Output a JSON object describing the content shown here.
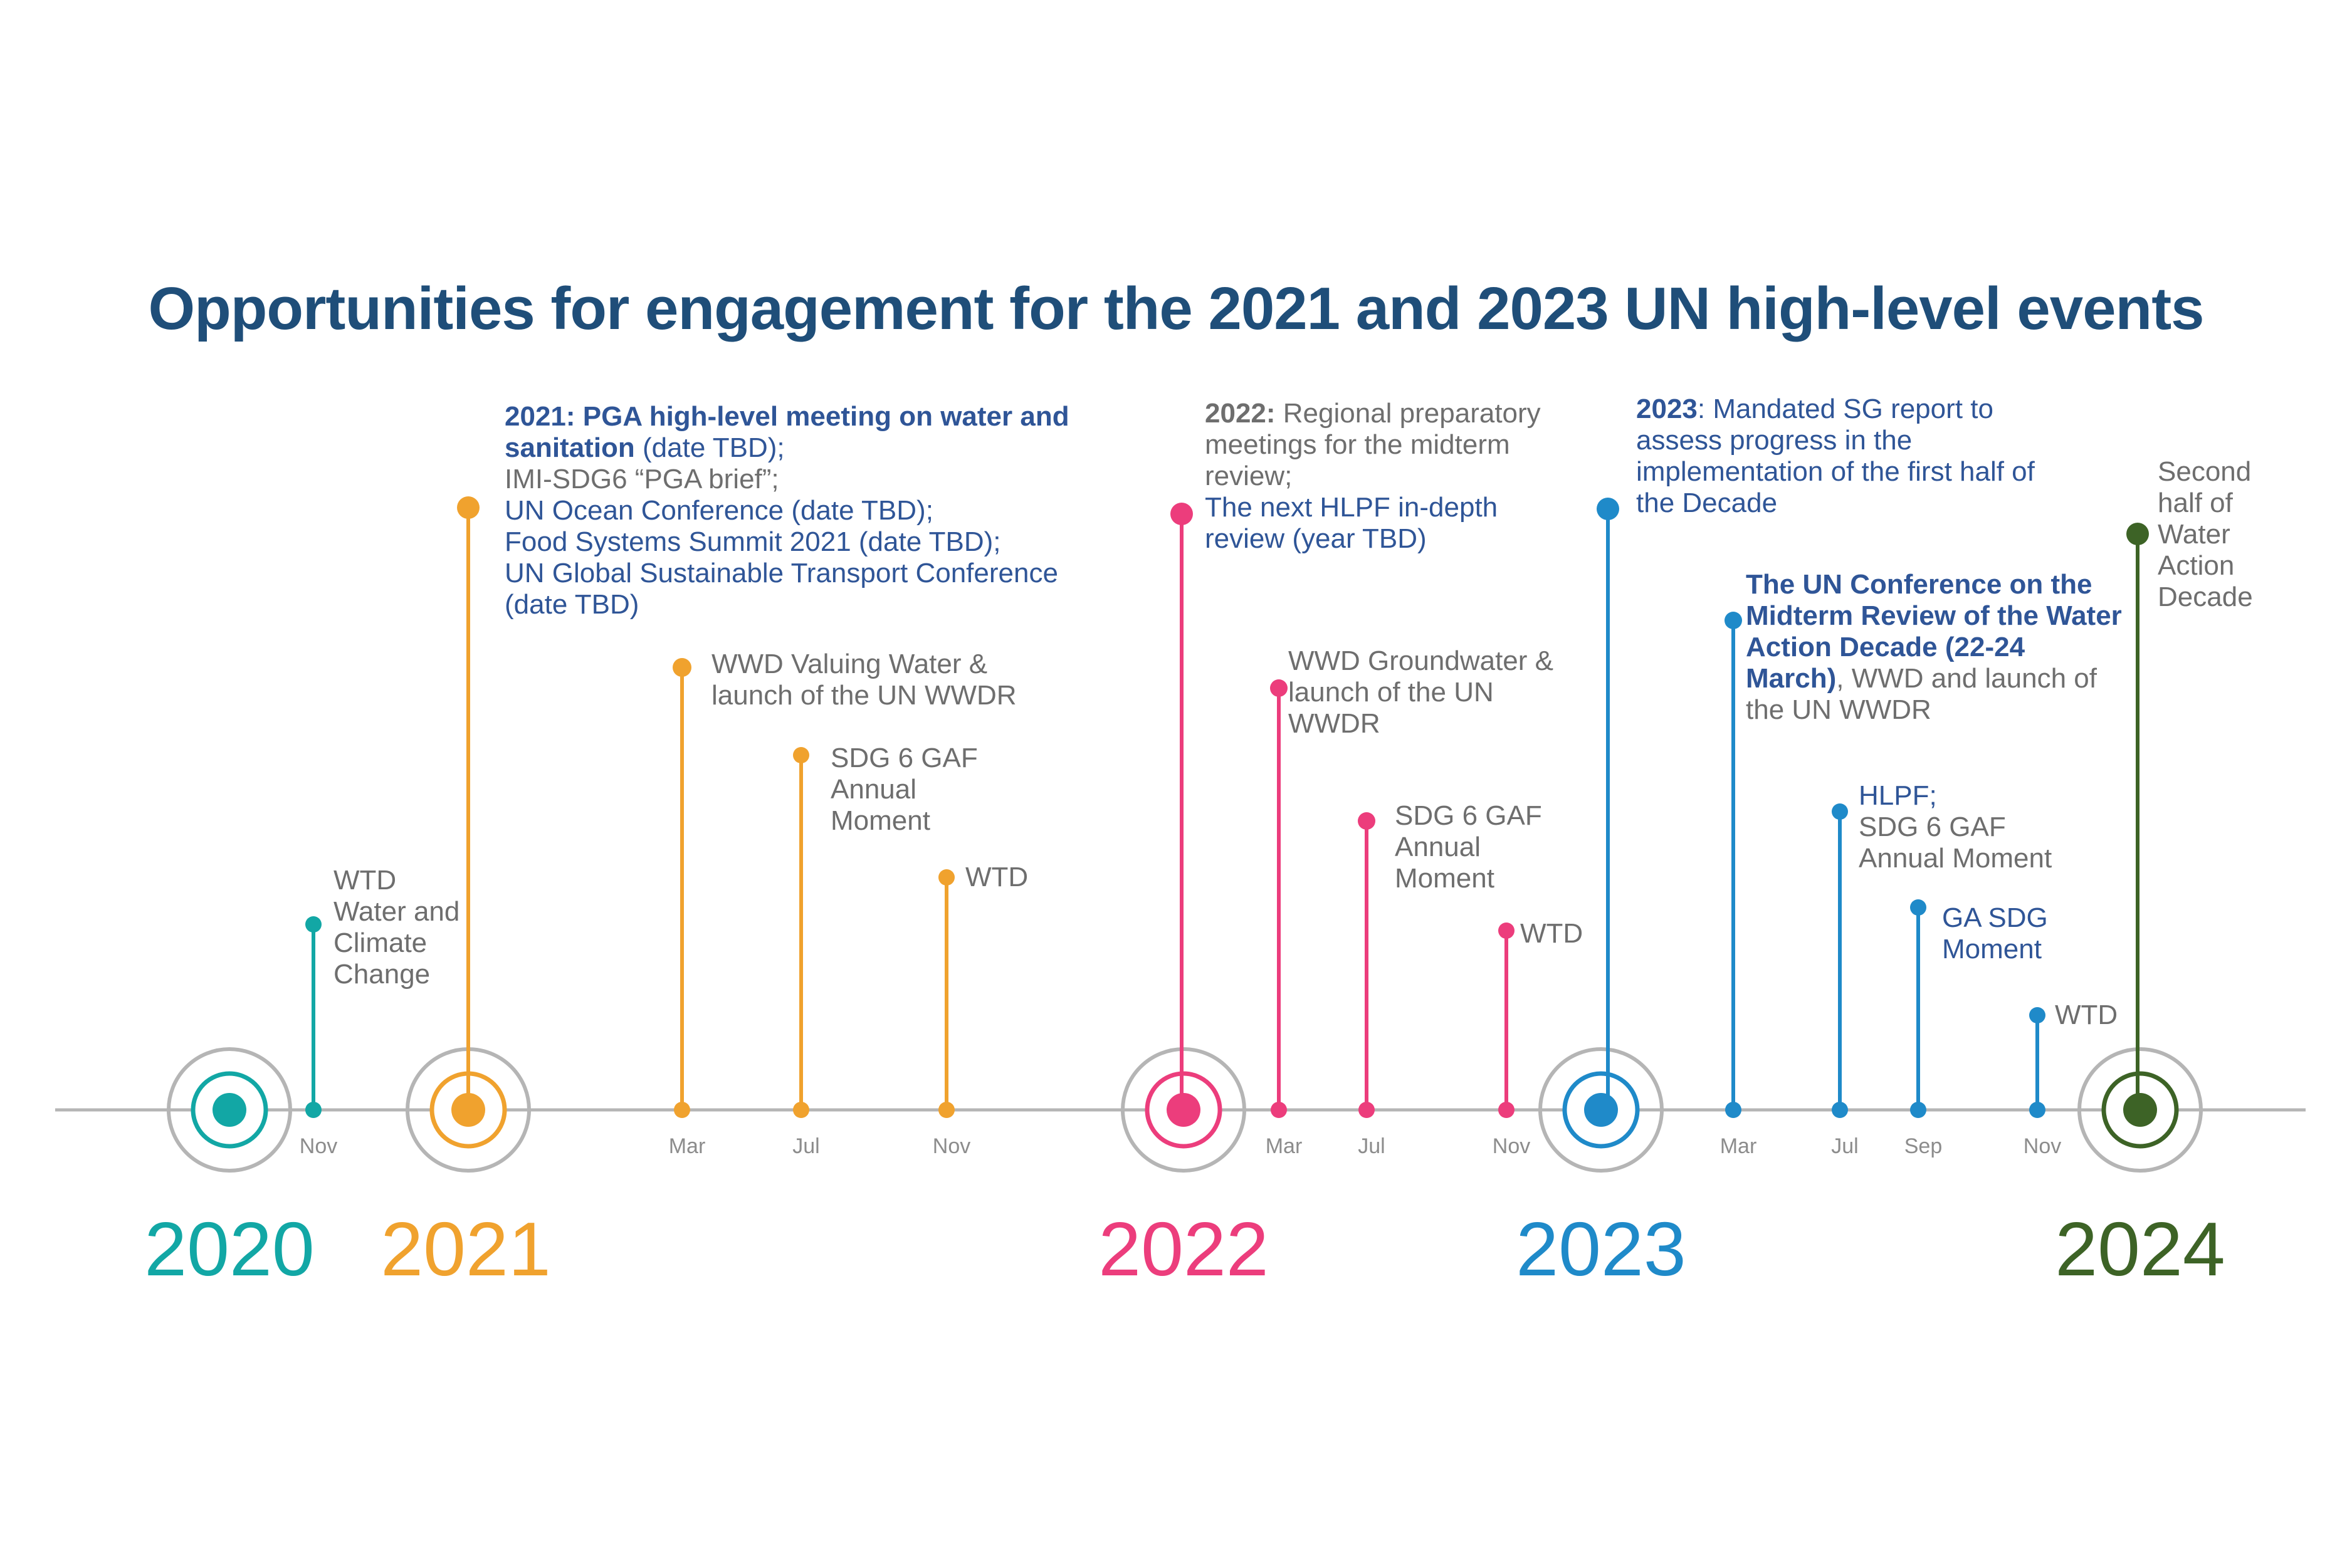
{
  "title": "Opportunities for engagement for the 2021 and 2023 UN high-level events",
  "colors": {
    "y2020": "#12a7a5",
    "y2021": "#f0a22e",
    "y2022": "#ec3d7c",
    "y2023": "#1f8ac9",
    "y2024": "#3d6326",
    "axis": "#b5b5b5",
    "month": "#8c8c8c",
    "text_gray": "#6e6e6e",
    "text_blue": "#2f5597"
  },
  "years": [
    {
      "label": "2020",
      "color": "#12a7a5"
    },
    {
      "label": "2021",
      "color": "#f0a22e"
    },
    {
      "label": "2022",
      "color": "#ec3d7c"
    },
    {
      "label": "2023",
      "color": "#1f8ac9"
    },
    {
      "label": "2024",
      "color": "#3d6326"
    }
  ],
  "months": [
    "Nov",
    "Mar",
    "Jul",
    "Nov",
    "Mar",
    "Jul",
    "Nov",
    "Mar",
    "Jul",
    "Sep",
    "Nov"
  ],
  "events": [
    {
      "segments": [
        {
          "text": "WTD\nWater and\nClimate\nChange",
          "style": "gray"
        }
      ]
    },
    {
      "segments": [
        {
          "text": "2021: PGA high-level meeting on water and sanitation",
          "style": "blue-bold"
        },
        {
          "text": " (date TBD);",
          "style": "blue"
        },
        {
          "text": "\nIMI-SDG6 “PGA brief”;",
          "style": "gray"
        },
        {
          "text": "\nUN Ocean Conference (date TBD);\nFood Systems Summit 2021 (date TBD);\nUN Global Sustainable Transport Conference (date TBD)",
          "style": "blue"
        }
      ]
    },
    {
      "segments": [
        {
          "text": "WWD Valuing Water &\nlaunch of the UN WWDR",
          "style": "gray"
        }
      ]
    },
    {
      "segments": [
        {
          "text": "SDG 6 GAF\nAnnual\nMoment",
          "style": "gray"
        }
      ]
    },
    {
      "segments": [
        {
          "text": "WTD",
          "style": "gray"
        }
      ]
    },
    {
      "segments": [
        {
          "text": "2022:",
          "style": "gray-bold"
        },
        {
          "text": " Regional preparatory meetings for the midterm review;",
          "style": "gray"
        },
        {
          "text": "\nThe next HLPF in-depth review (year TBD)",
          "style": "blue"
        }
      ]
    },
    {
      "segments": [
        {
          "text": "WWD Groundwater &\nlaunch of the UN\nWWDR",
          "style": "gray"
        }
      ]
    },
    {
      "segments": [
        {
          "text": "SDG 6 GAF\nAnnual\nMoment",
          "style": "gray"
        }
      ]
    },
    {
      "segments": [
        {
          "text": "WTD",
          "style": "gray"
        }
      ]
    },
    {
      "segments": [
        {
          "text": "2023",
          "style": "blue-bold"
        },
        {
          "text": ": Mandated SG report to assess progress in the implementation of the first half of the Decade",
          "style": "blue"
        }
      ]
    },
    {
      "segments": [
        {
          "text": "The UN Conference on the Midterm Review of the Water Action Decade (22-24 March)",
          "style": "blue-bold"
        },
        {
          "text": ", WWD and launch of the UN WWDR",
          "style": "gray"
        }
      ]
    },
    {
      "segments": [
        {
          "text": "HLPF;",
          "style": "blue"
        },
        {
          "text": "\nSDG 6 GAF\nAnnual Moment",
          "style": "gray"
        }
      ]
    },
    {
      "segments": [
        {
          "text": "GA SDG\nMoment",
          "style": "blue"
        }
      ]
    },
    {
      "segments": [
        {
          "text": "WTD",
          "style": "gray"
        }
      ]
    },
    {
      "segments": [
        {
          "text": "Second\nhalf of\nWater\nAction\nDecade",
          "style": "gray"
        }
      ]
    }
  ]
}
